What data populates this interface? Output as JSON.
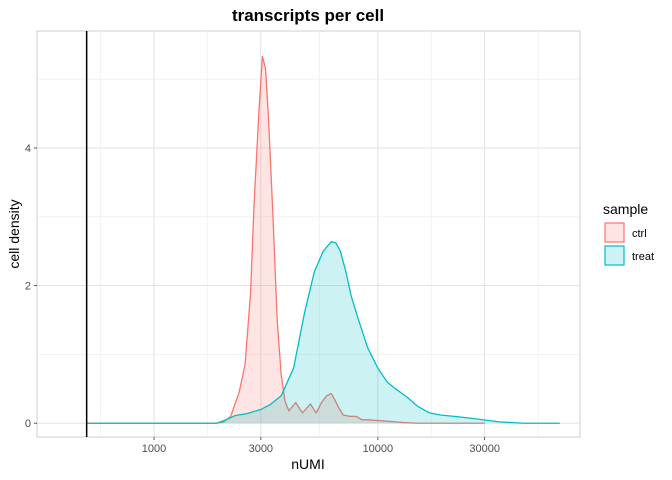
{
  "chart_data": {
    "type": "area",
    "title": "transcripts per cell",
    "xlabel": "nUMI",
    "ylabel": "cell density",
    "x_scale": "log10",
    "xlim": [
      300,
      80000
    ],
    "ylim": [
      -0.2,
      5.7
    ],
    "x_ticks": [
      1000,
      3000,
      10000,
      30000
    ],
    "x_tick_labels": [
      "1000",
      "3000",
      "10000",
      "30000"
    ],
    "y_ticks": [
      0,
      2,
      4
    ],
    "y_tick_labels": [
      "0",
      "2",
      "4"
    ],
    "grid": true,
    "vline": 500,
    "legend": {
      "title": "sample",
      "position": "right"
    },
    "series": [
      {
        "name": "ctrl",
        "color": "#F8766D",
        "fill": "#F8766D",
        "fill_opacity": 0.2,
        "x": [
          500,
          1900,
          2050,
          2200,
          2400,
          2550,
          2700,
          2800,
          2950,
          3050,
          3150,
          3250,
          3400,
          3550,
          3700,
          3850,
          4000,
          4300,
          4600,
          5000,
          5300,
          5600,
          5900,
          6200,
          6400,
          6700,
          7000,
          7500,
          8000,
          8500,
          9000,
          10000,
          11000,
          12000,
          13000,
          15000,
          20000,
          25000,
          30000
        ],
        "y": [
          0,
          0,
          0.02,
          0.1,
          0.45,
          0.85,
          1.9,
          3.2,
          4.6,
          5.33,
          5.15,
          4.4,
          3.0,
          1.5,
          0.7,
          0.32,
          0.18,
          0.3,
          0.15,
          0.28,
          0.15,
          0.3,
          0.4,
          0.43,
          0.35,
          0.22,
          0.12,
          0.1,
          0.1,
          0.05,
          0.05,
          0.04,
          0.03,
          0.02,
          0.01,
          0.0,
          0.0,
          0.0,
          0.0
        ]
      },
      {
        "name": "treat",
        "color": "#00BFC4",
        "fill": "#00BFC4",
        "fill_opacity": 0.2,
        "x": [
          500,
          1900,
          2100,
          2300,
          2600,
          3000,
          3300,
          3700,
          4200,
          4700,
          5200,
          5700,
          6200,
          6500,
          6800,
          7200,
          7600,
          8200,
          9000,
          10000,
          11000,
          12000,
          13500,
          15000,
          17000,
          19000,
          22000,
          25000,
          28000,
          35000,
          45000,
          55000,
          65000
        ],
        "y": [
          0,
          0,
          0.05,
          0.11,
          0.14,
          0.2,
          0.27,
          0.4,
          0.8,
          1.6,
          2.2,
          2.5,
          2.64,
          2.62,
          2.5,
          2.2,
          1.85,
          1.5,
          1.1,
          0.8,
          0.6,
          0.5,
          0.38,
          0.25,
          0.15,
          0.12,
          0.1,
          0.08,
          0.06,
          0.02,
          0.0,
          0.0,
          0.0
        ]
      }
    ]
  }
}
